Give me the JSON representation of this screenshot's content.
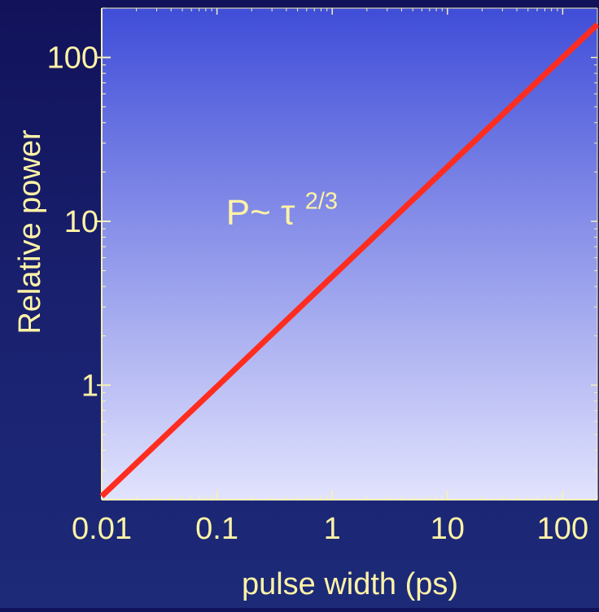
{
  "colors": {
    "page_background": "#11145a",
    "plot_gradient_top": "#3f4dd8",
    "plot_gradient_bottom": "#e2e3fd",
    "axis_line": "#f5f0b8",
    "text": "#fff3a6",
    "series_line": "#ff2d1f"
  },
  "chart_data": {
    "type": "line",
    "title": "",
    "xlabel": "pulse width (ps)",
    "ylabel": "Relative power",
    "x_scale": "log",
    "y_scale": "log",
    "xlim": [
      0.01,
      200
    ],
    "ylim": [
      0.2,
      200
    ],
    "x_ticks": [
      0.01,
      0.1,
      1,
      10,
      100
    ],
    "x_tick_labels": [
      "0.01",
      "0.1",
      "1",
      "10",
      "100"
    ],
    "y_ticks": [
      1,
      10,
      100
    ],
    "y_tick_labels": [
      "1",
      "10",
      "100"
    ],
    "grid": false,
    "legend": "none",
    "series": [
      {
        "x": [
          0.01,
          0.1,
          1,
          10,
          100,
          200
        ],
        "y": [
          0.21,
          0.98,
          4.6,
          21.5,
          100,
          159
        ]
      }
    ],
    "annotations": [
      {
        "base": "P~ τ",
        "sup": "2/3",
        "x": 0.12,
        "y": 11
      }
    ]
  }
}
